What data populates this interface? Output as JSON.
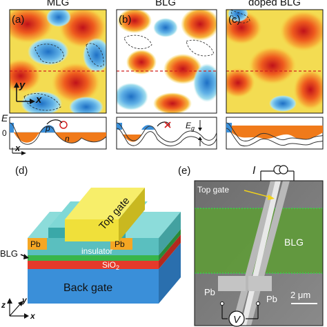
{
  "panels": {
    "a": {
      "label": "(a)",
      "title": "MLG"
    },
    "b": {
      "label": "(b)",
      "title": "BLG"
    },
    "c": {
      "label": "(c)",
      "title": "doped BLG"
    },
    "d": {
      "label": "(d)"
    },
    "e": {
      "label": "(e)"
    }
  },
  "axes": {
    "y": "y",
    "x": "x",
    "e": "E",
    "zero": "0"
  },
  "profile": {
    "p": "p",
    "n": "n",
    "gap": "E",
    "gap_sub": "g"
  },
  "device": {
    "top_gate": "Top gate",
    "insulator": "insulator",
    "pb": "Pb",
    "blg": "BLG",
    "sio2": "SiO",
    "sio2_sub": "2",
    "back_gate": "Back gate"
  },
  "sem": {
    "current": "I",
    "top_gate": "Top gate",
    "blg": "BLG",
    "pb": "Pb",
    "scale": "2 μm",
    "voltage": "V"
  },
  "colors": {
    "red": "#d7191c",
    "orange": "#f07a1a",
    "blue": "#3a8fd9",
    "yellow": "#f2e14c",
    "green": "#39b54a"
  }
}
